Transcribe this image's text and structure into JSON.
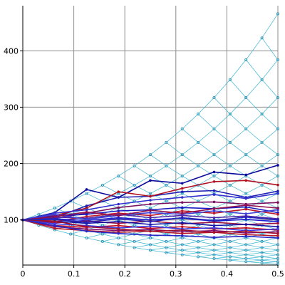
{
  "chart_data": {
    "type": "line",
    "title": "",
    "xlabel": "",
    "ylabel": "",
    "xlim": [
      0,
      0.5
    ],
    "ylim": [
      20,
      480
    ],
    "x_ticks": [
      0,
      0.1,
      0.2,
      0.3,
      0.4,
      0.5
    ],
    "x_tick_labels": [
      "0",
      "0.1",
      "0.2",
      "0.3",
      "0.4",
      "0.5"
    ],
    "y_ticks": [
      100,
      200,
      300,
      400
    ],
    "y_tick_labels": [
      "100",
      "200",
      "300",
      "400"
    ],
    "grid": true,
    "lattice": {
      "type": "binomial",
      "start_value": 100,
      "steps": 16,
      "time_end": 0.5,
      "up_factor": 1.1009,
      "color": "#3cb4d2"
    },
    "series": [
      {
        "color": "#0a0a9c",
        "x": [
          0,
          0.0625,
          0.125,
          0.1875,
          0.25,
          0.3125,
          0.375,
          0.4375,
          0.5
        ],
        "y": [
          100,
          113,
          154,
          140,
          170,
          165,
          185,
          180,
          197
        ]
      },
      {
        "color": "#1e1eb4",
        "x": [
          0,
          0.0625,
          0.125,
          0.1875,
          0.25,
          0.3125,
          0.375,
          0.4375,
          0.5
        ],
        "y": [
          100,
          104,
          125,
          140,
          142,
          150,
          152,
          140,
          151
        ]
      },
      {
        "color": "#b01020",
        "x": [
          0,
          0.0625,
          0.125,
          0.1875,
          0.25,
          0.3125,
          0.375,
          0.4375,
          0.5
        ],
        "y": [
          100,
          108,
          121,
          150,
          142,
          156,
          168,
          170,
          162
        ]
      },
      {
        "color": "#3030d0",
        "x": [
          0,
          0.0625,
          0.125,
          0.1875,
          0.25,
          0.3125,
          0.375,
          0.4375,
          0.5
        ],
        "y": [
          100,
          112,
          118,
          128,
          135,
          140,
          145,
          138,
          147
        ]
      },
      {
        "color": "#7a1060",
        "x": [
          0,
          0.0625,
          0.125,
          0.1875,
          0.25,
          0.3125,
          0.375,
          0.4375,
          0.5
        ],
        "y": [
          100,
          103,
          112,
          122,
          128,
          131,
          132,
          128,
          131
        ]
      },
      {
        "color": "#1a1ac0",
        "x": [
          0,
          0.0625,
          0.125,
          0.1875,
          0.25,
          0.3125,
          0.375,
          0.4375,
          0.5
        ],
        "y": [
          100,
          107,
          110,
          116,
          118,
          122,
          120,
          123,
          113
        ]
      },
      {
        "color": "#c01828",
        "x": [
          0,
          0.0625,
          0.125,
          0.1875,
          0.25,
          0.3125,
          0.375,
          0.4375,
          0.5
        ],
        "y": [
          100,
          97,
          106,
          112,
          108,
          116,
          112,
          119,
          110
        ]
      },
      {
        "color": "#5028a8",
        "x": [
          0,
          0.0625,
          0.125,
          0.1875,
          0.25,
          0.3125,
          0.375,
          0.4375,
          0.5
        ],
        "y": [
          100,
          105,
          103,
          110,
          104,
          108,
          104,
          107,
          102
        ]
      },
      {
        "color": "#2020d0",
        "x": [
          0,
          0.0625,
          0.125,
          0.1875,
          0.25,
          0.3125,
          0.375,
          0.4375,
          0.5
        ],
        "y": [
          100,
          102,
          99,
          104,
          100,
          103,
          98,
          101,
          97
        ]
      },
      {
        "color": "#9a1040",
        "x": [
          0,
          0.0625,
          0.125,
          0.1875,
          0.25,
          0.3125,
          0.375,
          0.4375,
          0.5
        ],
        "y": [
          100,
          95,
          98,
          94,
          98,
          93,
          96,
          92,
          94
        ]
      },
      {
        "color": "#1414a8",
        "x": [
          0,
          0.0625,
          0.125,
          0.1875,
          0.25,
          0.3125,
          0.375,
          0.4375,
          0.5
        ],
        "y": [
          100,
          98,
          94,
          97,
          92,
          95,
          90,
          92,
          88
        ]
      },
      {
        "color": "#c81020",
        "x": [
          0,
          0.0625,
          0.125,
          0.1875,
          0.25,
          0.3125,
          0.375,
          0.4375,
          0.5
        ],
        "y": [
          100,
          90,
          87,
          90,
          85,
          88,
          84,
          86,
          82
        ]
      },
      {
        "color": "#3a3ae0",
        "x": [
          0,
          0.0625,
          0.125,
          0.1875,
          0.25,
          0.3125,
          0.375,
          0.4375,
          0.5
        ],
        "y": [
          100,
          93,
          90,
          86,
          89,
          84,
          86,
          81,
          84
        ]
      },
      {
        "color": "#801070",
        "x": [
          0,
          0.0625,
          0.125,
          0.1875,
          0.25,
          0.3125,
          0.375,
          0.4375,
          0.5
        ],
        "y": [
          100,
          88,
          84,
          81,
          83,
          79,
          81,
          77,
          79
        ]
      },
      {
        "color": "#b81828",
        "x": [
          0,
          0.0625,
          0.125,
          0.1875,
          0.25,
          0.3125,
          0.375,
          0.4375,
          0.5
        ],
        "y": [
          100,
          85,
          81,
          78,
          80,
          76,
          78,
          74,
          72
        ]
      },
      {
        "color": "#2828c8",
        "x": [
          0,
          0.0625,
          0.125,
          0.1875,
          0.25,
          0.3125,
          0.375,
          0.4375,
          0.5
        ],
        "y": [
          100,
          90,
          80,
          76,
          73,
          72,
          69,
          71,
          68
        ]
      },
      {
        "color": "#a01030",
        "x": [
          0,
          0.0625,
          0.125,
          0.1875,
          0.25,
          0.3125,
          0.375,
          0.4375,
          0.5
        ],
        "y": [
          100,
          98,
          88,
          84,
          80,
          82,
          78,
          80,
          76
        ]
      },
      {
        "color": "#4040d8",
        "x": [
          0,
          0.0625,
          0.125,
          0.1875,
          0.25,
          0.3125,
          0.375,
          0.4375,
          0.5
        ],
        "y": [
          100,
          110,
          101,
          108,
          113,
          110,
          116,
          111,
          118
        ]
      },
      {
        "color": "#901050",
        "x": [
          0,
          0.0625,
          0.125,
          0.1875,
          0.25,
          0.3125,
          0.375,
          0.4375,
          0.5
        ],
        "y": [
          100,
          106,
          114,
          108,
          117,
          112,
          120,
          126,
          121
        ]
      },
      {
        "color": "#2424b8",
        "x": [
          0,
          0.0625,
          0.125,
          0.1875,
          0.25,
          0.3125,
          0.375,
          0.4375,
          0.5
        ],
        "y": [
          100,
          101,
          96,
          102,
          97,
          104,
          99,
          105,
          100
        ]
      }
    ]
  }
}
